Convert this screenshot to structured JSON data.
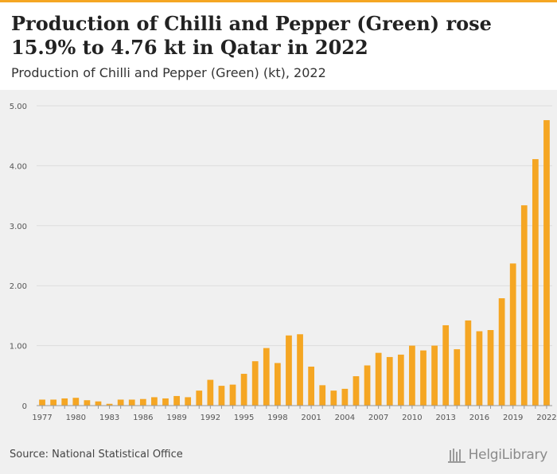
{
  "header": {
    "title": "Production of Chilli and Pepper (Green) rose 15.9% to 4.76 kt in Qatar in 2022",
    "subtitle": "Production of Chilli and Pepper (Green) (kt), 2022"
  },
  "footer": {
    "source": "Source: National Statistical Office",
    "logo": "HelgiLibrary"
  },
  "colors": {
    "bar": "#f5a623",
    "accent": "#f5a623",
    "background": "#f0f0f0",
    "grid": "#dddddd"
  },
  "chart_data": {
    "type": "bar",
    "title": "Production of Chilli and Pepper (Green) rose 15.9% to 4.76 kt in Qatar in 2022",
    "subtitle": "Production of Chilli and Pepper (Green) (kt), 2022",
    "xlabel": "",
    "ylabel": "",
    "ylim": [
      0,
      5
    ],
    "yticks": [
      "0",
      "1.00",
      "2.00",
      "3.00",
      "4.00",
      "5.00"
    ],
    "xtick_labels": [
      "1977",
      "1980",
      "1983",
      "1986",
      "1989",
      "1992",
      "1995",
      "1998",
      "2001",
      "2004",
      "2007",
      "2010",
      "2013",
      "2016",
      "2019",
      "2022"
    ],
    "grid": true,
    "categories": [
      "1977",
      "1978",
      "1979",
      "1980",
      "1981",
      "1982",
      "1983",
      "1984",
      "1985",
      "1986",
      "1987",
      "1988",
      "1989",
      "1990",
      "1991",
      "1992",
      "1993",
      "1994",
      "1995",
      "1996",
      "1997",
      "1998",
      "1999",
      "2000",
      "2001",
      "2002",
      "2003",
      "2004",
      "2005",
      "2006",
      "2007",
      "2008",
      "2009",
      "2010",
      "2011",
      "2012",
      "2013",
      "2014",
      "2015",
      "2016",
      "2017",
      "2018",
      "2019",
      "2020",
      "2021",
      "2022"
    ],
    "values": [
      0.1,
      0.1,
      0.12,
      0.13,
      0.09,
      0.07,
      0.03,
      0.1,
      0.1,
      0.11,
      0.14,
      0.12,
      0.16,
      0.14,
      0.25,
      0.43,
      0.33,
      0.35,
      0.53,
      0.74,
      0.96,
      0.71,
      1.17,
      1.19,
      0.65,
      0.34,
      0.25,
      0.28,
      0.49,
      0.67,
      0.88,
      0.81,
      0.85,
      1.0,
      0.92,
      1.0,
      1.34,
      0.94,
      1.42,
      1.24,
      1.26,
      1.79,
      2.37,
      3.34,
      4.11,
      4.76
    ]
  }
}
